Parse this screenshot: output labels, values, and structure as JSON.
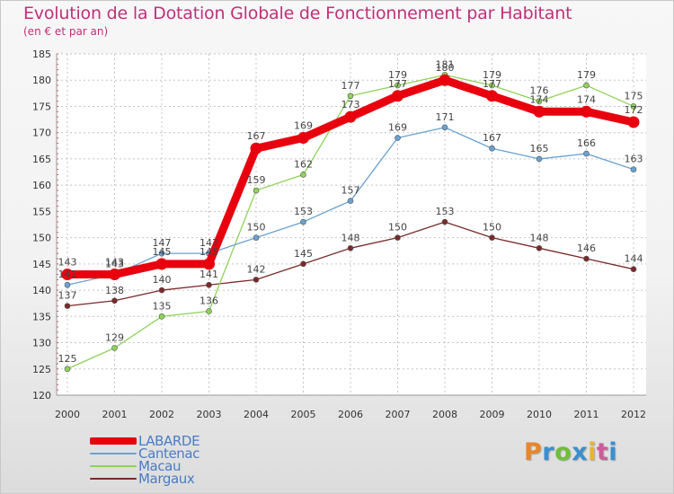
{
  "page": {
    "title": "Evolution de la Dotation Globale de Fonctionnement par Habitant",
    "subtitle": "(en € et par an)",
    "logo_letters": [
      "P",
      "r",
      "o",
      "x",
      "i",
      "t",
      "i"
    ],
    "logo_colors": [
      "#e8862b",
      "#3a8fd0",
      "#6fbf3a",
      "#3a8fd0",
      "#e8b42b",
      "#d05a9a",
      "#3a8fd0"
    ]
  },
  "chart_data": {
    "type": "line",
    "x": [
      2000,
      2001,
      2002,
      2003,
      2004,
      2005,
      2006,
      2007,
      2008,
      2009,
      2010,
      2011,
      2012
    ],
    "ylim": [
      120,
      185
    ],
    "yticks": [
      120,
      125,
      130,
      135,
      140,
      145,
      150,
      155,
      160,
      165,
      170,
      175,
      180,
      185
    ],
    "grid": true,
    "legend_position": "bottom-left",
    "series": [
      {
        "name": "LABARDE",
        "color": "#e8000e",
        "values": [
          143,
          143,
          145,
          145,
          167,
          169,
          173,
          177,
          180,
          177,
          174,
          174,
          172
        ]
      },
      {
        "name": "Cantenac",
        "color": "#6aa2d2",
        "values": [
          141,
          143,
          147,
          147,
          150,
          153,
          157,
          169,
          171,
          167,
          165,
          166,
          163
        ]
      },
      {
        "name": "Macau",
        "color": "#8fd35a",
        "values": [
          125,
          129,
          135,
          136,
          159,
          162,
          177,
          179,
          181,
          179,
          176,
          179,
          175
        ]
      },
      {
        "name": "Margaux",
        "color": "#7a2a2a",
        "values": [
          137,
          138,
          140,
          141,
          142,
          145,
          148,
          150,
          153,
          150,
          148,
          146,
          144
        ]
      }
    ]
  }
}
